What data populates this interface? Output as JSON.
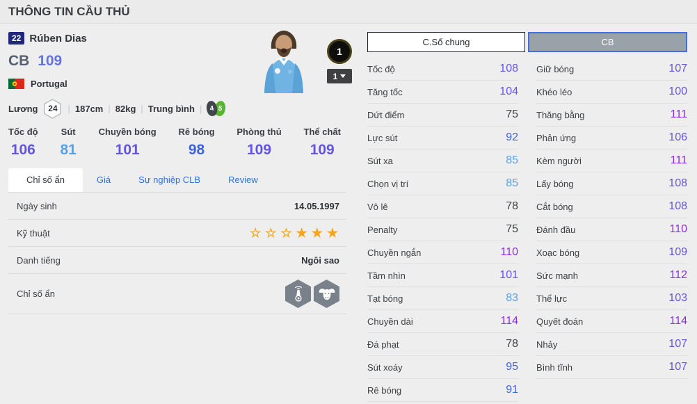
{
  "page": {
    "title": "THÔNG TIN CẦU THỦ"
  },
  "player": {
    "number": "22",
    "name": "Rúben Dias",
    "position": "CB",
    "ovr": "109",
    "nation": "Portugal",
    "upgrade_badge": "1",
    "level_selected": "1",
    "salary_label": "Lương",
    "salary": "24",
    "height": "187cm",
    "weight": "82kg",
    "body_type": "Trung bình",
    "foot_left": "4",
    "foot_right": "5",
    "divider": "|"
  },
  "summary_stats": [
    {
      "label": "Tốc độ",
      "value": 106
    },
    {
      "label": "Sút",
      "value": 81
    },
    {
      "label": "Chuyền bóng",
      "value": 101
    },
    {
      "label": "Rê bóng",
      "value": 98
    },
    {
      "label": "Phòng thủ",
      "value": 109
    },
    {
      "label": "Thể chất",
      "value": 109
    }
  ],
  "tabs": [
    {
      "label": "Chỉ số ẩn",
      "active": true
    },
    {
      "label": "Giá",
      "active": false
    },
    {
      "label": "Sự nghiệp CLB",
      "active": false
    },
    {
      "label": "Review",
      "active": false
    }
  ],
  "info_table": {
    "rows": [
      {
        "label": "Ngày sinh",
        "type": "text",
        "value": "14.05.1997"
      },
      {
        "label": "Kỹ thuật",
        "type": "stars",
        "stars": [
          0,
          0,
          0,
          1,
          1,
          1
        ]
      },
      {
        "label": "Danh tiếng",
        "type": "text",
        "value": "Ngôi sao"
      },
      {
        "label": "Chỉ số ẩn",
        "type": "icons",
        "icons": [
          "lighthouse-icon",
          "buffalo-icon"
        ]
      }
    ]
  },
  "detail_panel": {
    "tab_general": "C.Số chung",
    "tab_position": "CB",
    "left_column": [
      {
        "label": "Tốc độ",
        "value": 108
      },
      {
        "label": "Tăng tốc",
        "value": 104
      },
      {
        "label": "Dứt điểm",
        "value": 75
      },
      {
        "label": "Lực sút",
        "value": 92
      },
      {
        "label": "Sút xa",
        "value": 85
      },
      {
        "label": "Chọn vị trí",
        "value": 85
      },
      {
        "label": "Vô lê",
        "value": 78
      },
      {
        "label": "Penalty",
        "value": 75
      },
      {
        "label": "Chuyền ngắn",
        "value": 110
      },
      {
        "label": "Tầm nhìn",
        "value": 101
      },
      {
        "label": "Tạt bóng",
        "value": 83
      },
      {
        "label": "Chuyền dài",
        "value": 114
      },
      {
        "label": "Đá phạt",
        "value": 78
      },
      {
        "label": "Sút xoáy",
        "value": 95
      },
      {
        "label": "Rê bóng",
        "value": 91
      }
    ],
    "right_column": [
      {
        "label": "Giữ bóng",
        "value": 107
      },
      {
        "label": "Khéo léo",
        "value": 100
      },
      {
        "label": "Thăng bằng",
        "value": 111
      },
      {
        "label": "Phản ứng",
        "value": 106
      },
      {
        "label": "Kèm người",
        "value": 111
      },
      {
        "label": "Lấy bóng",
        "value": 108
      },
      {
        "label": "Cắt bóng",
        "value": 108
      },
      {
        "label": "Đánh đầu",
        "value": 110
      },
      {
        "label": "Xoạc bóng",
        "value": 109
      },
      {
        "label": "Sức mạnh",
        "value": 112
      },
      {
        "label": "Thể lực",
        "value": 103
      },
      {
        "label": "Quyết đoán",
        "value": 114
      },
      {
        "label": "Nhảy",
        "value": 107
      },
      {
        "label": "Bình tĩnh",
        "value": 107
      }
    ]
  },
  "colors": {
    "tier_low": "#3f4245",
    "tier_80": "#58a0e8",
    "tier_90": "#3e63db",
    "tier_100": "#6355df",
    "tier_110": "#8e2ce2",
    "ovr_color": "#6472e6",
    "position_color": "#55616e",
    "star_color": "#f7a51b",
    "badge_navy": "#20287d",
    "foot_left_bg": "#41464c",
    "foot_right_bg": "#57b52f",
    "accent_blue": "#3f6fe8"
  }
}
